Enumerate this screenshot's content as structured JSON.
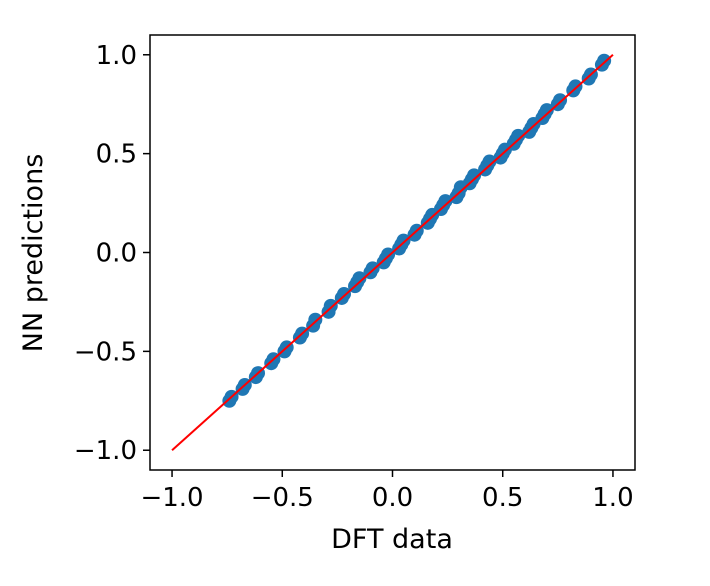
{
  "chart_data": {
    "type": "scatter",
    "xlabel": "DFT data",
    "ylabel": "NN predictions",
    "xlim": [
      -1.1,
      1.1
    ],
    "ylim": [
      -1.1,
      1.1
    ],
    "xticks": [
      -1.0,
      -0.5,
      0.0,
      0.5,
      1.0
    ],
    "yticks": [
      -1.0,
      -0.5,
      0.0,
      0.5,
      1.0
    ],
    "xtick_labels": [
      "−1.0",
      "−0.5",
      "0.0",
      "0.5",
      "1.0"
    ],
    "ytick_labels": [
      "−1.0",
      "−0.5",
      "0.0",
      "0.5",
      "1.0"
    ],
    "grid": false,
    "colors": {
      "points": "#1f77b4",
      "line": "#ff0000"
    },
    "series": [
      {
        "type": "scatter",
        "x": [
          -0.74,
          -0.73,
          -0.68,
          -0.67,
          -0.62,
          -0.61,
          -0.55,
          -0.54,
          -0.49,
          -0.48,
          -0.42,
          -0.41,
          -0.36,
          -0.35,
          -0.29,
          -0.28,
          -0.23,
          -0.22,
          -0.17,
          -0.16,
          -0.15,
          -0.1,
          -0.09,
          -0.04,
          -0.03,
          -0.02,
          0.03,
          0.04,
          0.05,
          0.1,
          0.11,
          0.16,
          0.17,
          0.18,
          0.22,
          0.23,
          0.24,
          0.29,
          0.3,
          0.31,
          0.35,
          0.36,
          0.37,
          0.42,
          0.43,
          0.44,
          0.49,
          0.5,
          0.51,
          0.55,
          0.56,
          0.57,
          0.62,
          0.63,
          0.64,
          0.68,
          0.69,
          0.7,
          0.75,
          0.76,
          0.82,
          0.83,
          0.89,
          0.9,
          0.95,
          0.96
        ],
        "y": [
          -0.75,
          -0.73,
          -0.69,
          -0.67,
          -0.63,
          -0.61,
          -0.56,
          -0.54,
          -0.5,
          -0.48,
          -0.43,
          -0.41,
          -0.37,
          -0.34,
          -0.3,
          -0.27,
          -0.23,
          -0.21,
          -0.17,
          -0.15,
          -0.13,
          -0.1,
          -0.08,
          -0.05,
          -0.03,
          -0.01,
          0.02,
          0.04,
          0.06,
          0.09,
          0.11,
          0.15,
          0.17,
          0.19,
          0.22,
          0.24,
          0.26,
          0.28,
          0.3,
          0.33,
          0.35,
          0.37,
          0.39,
          0.42,
          0.44,
          0.46,
          0.48,
          0.5,
          0.52,
          0.55,
          0.57,
          0.59,
          0.61,
          0.63,
          0.65,
          0.68,
          0.7,
          0.72,
          0.75,
          0.77,
          0.82,
          0.84,
          0.88,
          0.9,
          0.95,
          0.97
        ]
      },
      {
        "type": "line",
        "x": [
          -1.0,
          1.0
        ],
        "y": [
          -1.0,
          1.0
        ]
      }
    ]
  }
}
